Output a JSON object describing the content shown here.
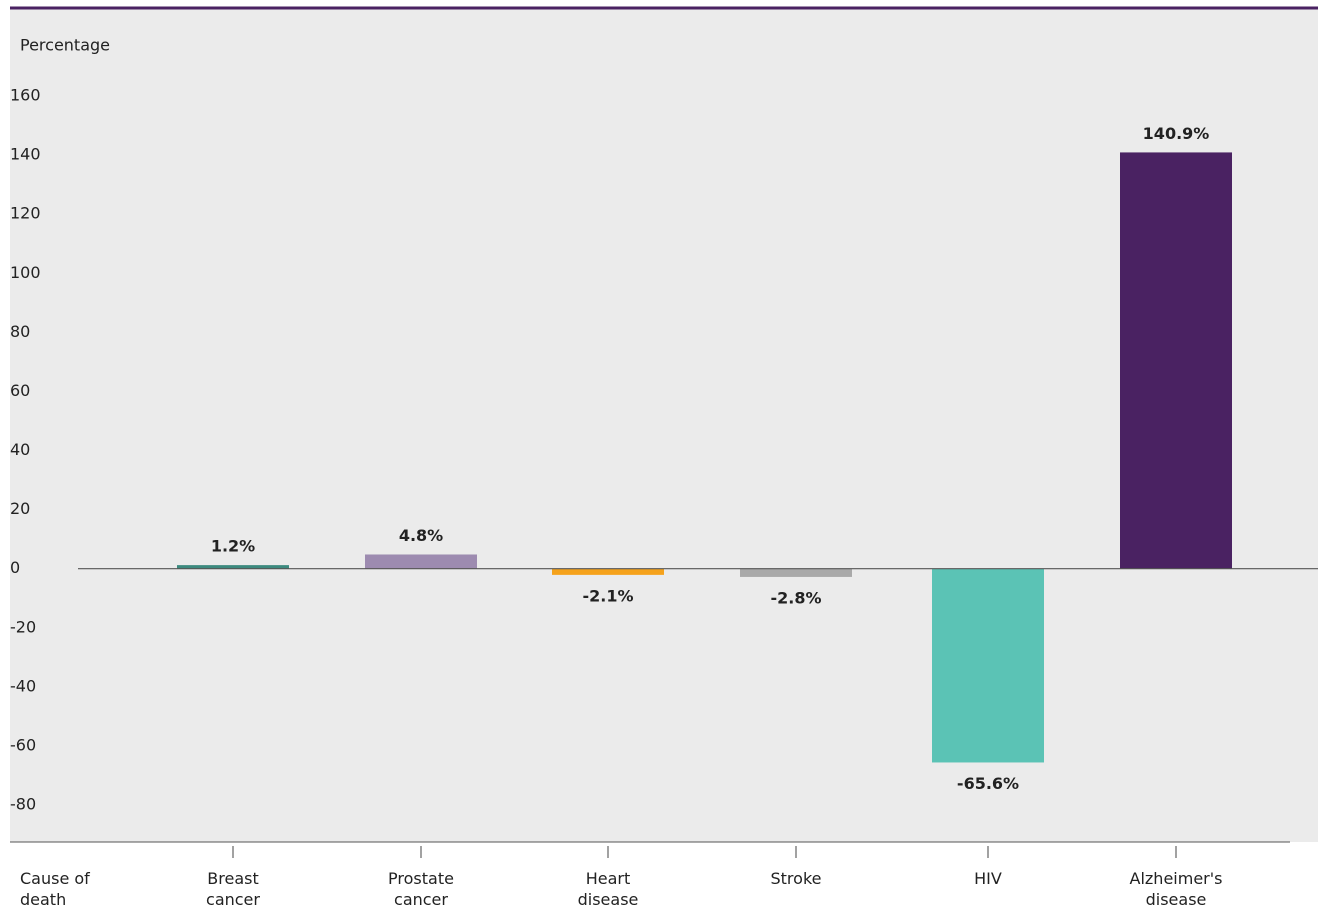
{
  "chart_data": {
    "type": "bar",
    "y_label": "Percentage",
    "x_label": "Cause of death",
    "categories": [
      "Breast cancer",
      "Prostate cancer",
      "Heart disease",
      "Stroke",
      "HIV",
      "Alzheimer's disease"
    ],
    "values": [
      1.2,
      4.8,
      -2.1,
      -2.8,
      -65.6,
      140.9
    ],
    "value_labels": [
      "1.2%",
      "4.8%",
      "-2.1%",
      "-2.8%",
      "-65.6%",
      "140.9%"
    ],
    "colors": [
      "#3d8a7f",
      "#9d8bb0",
      "#f5a21b",
      "#a9a9a9",
      "#5bc3b5",
      "#4a2262"
    ],
    "ylim": [
      -80,
      160
    ],
    "yticks": [
      160,
      140,
      120,
      100,
      80,
      60,
      40,
      20,
      0,
      -20,
      -40,
      -60,
      -80
    ],
    "grid": false
  }
}
